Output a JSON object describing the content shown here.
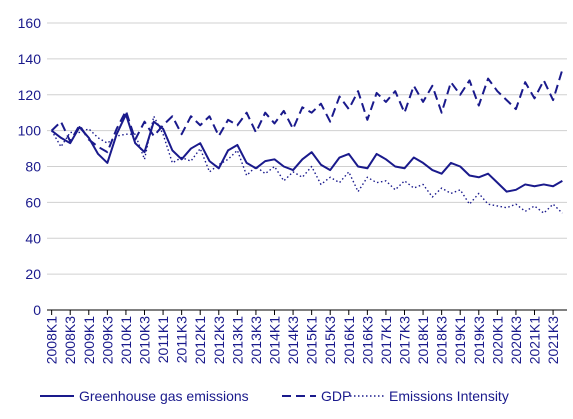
{
  "chart_data": {
    "type": "line",
    "ylim": [
      0,
      160
    ],
    "yticks": [
      0,
      20,
      40,
      60,
      80,
      100,
      120,
      140,
      160
    ],
    "grid": "horizontal",
    "legend_placement": "bottom",
    "tick_labels": [
      "2008K1",
      "2008K3",
      "2009K1",
      "2009K3",
      "2010K1",
      "2010K3",
      "2011K1",
      "2011K3",
      "2012K1",
      "2012K3",
      "2013K1",
      "2013K3",
      "2014K1",
      "2014K3",
      "2015K1",
      "2015K3",
      "2016K1",
      "2016K3",
      "2017K1",
      "2017K3",
      "2018K1",
      "2018K3",
      "2019K1",
      "2019K3",
      "2020K1",
      "2020K3",
      "2021K1",
      "2021K3"
    ],
    "x": [
      "2008K1",
      "2008K2",
      "2008K3",
      "2008K4",
      "2009K1",
      "2009K2",
      "2009K3",
      "2009K4",
      "2010K1",
      "2010K2",
      "2010K3",
      "2010K4",
      "2011K1",
      "2011K2",
      "2011K3",
      "2011K4",
      "2012K1",
      "2012K2",
      "2012K3",
      "2012K4",
      "2013K1",
      "2013K2",
      "2013K3",
      "2013K4",
      "2014K1",
      "2014K2",
      "2014K3",
      "2014K4",
      "2015K1",
      "2015K2",
      "2015K3",
      "2015K4",
      "2016K1",
      "2016K2",
      "2016K3",
      "2016K4",
      "2017K1",
      "2017K2",
      "2017K3",
      "2017K4",
      "2018K1",
      "2018K2",
      "2018K3",
      "2018K4",
      "2019K1",
      "2019K2",
      "2019K3",
      "2019K4",
      "2020K1",
      "2020K2",
      "2020K3",
      "2020K4",
      "2021K1",
      "2021K2",
      "2021K3",
      "2021K4"
    ],
    "series": [
      {
        "name": "Greenhouse gas emissions",
        "color": "#1a1a8c",
        "dash": "solid",
        "values": [
          100,
          96,
          93,
          102,
          96,
          87,
          82,
          98,
          109,
          93,
          88,
          105,
          101,
          89,
          84,
          90,
          93,
          83,
          79,
          89,
          92,
          82,
          79,
          83,
          84,
          80,
          78,
          84,
          88,
          81,
          78,
          85,
          87,
          80,
          79,
          87,
          84,
          80,
          79,
          85,
          82,
          78,
          76,
          82,
          80,
          75,
          74,
          76,
          71,
          66,
          67,
          70,
          69,
          70,
          69,
          72
        ]
      },
      {
        "name": "GDP",
        "color": "#1a1a8c",
        "dash": "dashed",
        "values": [
          100,
          105,
          94,
          103,
          95,
          91,
          88,
          101,
          111,
          95,
          105,
          97,
          103,
          108,
          98,
          108,
          103,
          108,
          97,
          106,
          103,
          110,
          99,
          110,
          104,
          111,
          101,
          113,
          110,
          115,
          105,
          119,
          112,
          122,
          106,
          121,
          116,
          122,
          110,
          125,
          116,
          125,
          110,
          127,
          120,
          128,
          114,
          129,
          122,
          117,
          112,
          127,
          118,
          128,
          117,
          134
        ]
      },
      {
        "name": "Emissions Intensity",
        "color": "#1a1a8c",
        "dash": "dotted",
        "values": [
          100,
          91,
          99,
          99,
          101,
          96,
          93,
          97,
          98,
          98,
          84,
          108,
          98,
          82,
          85,
          83,
          90,
          77,
          81,
          84,
          89,
          75,
          80,
          76,
          80,
          72,
          77,
          74,
          80,
          70,
          74,
          71,
          77,
          66,
          74,
          71,
          72,
          67,
          72,
          68,
          70,
          63,
          68,
          65,
          67,
          59,
          65,
          59,
          58,
          57,
          59,
          55,
          58,
          54,
          59,
          54
        ]
      }
    ]
  }
}
